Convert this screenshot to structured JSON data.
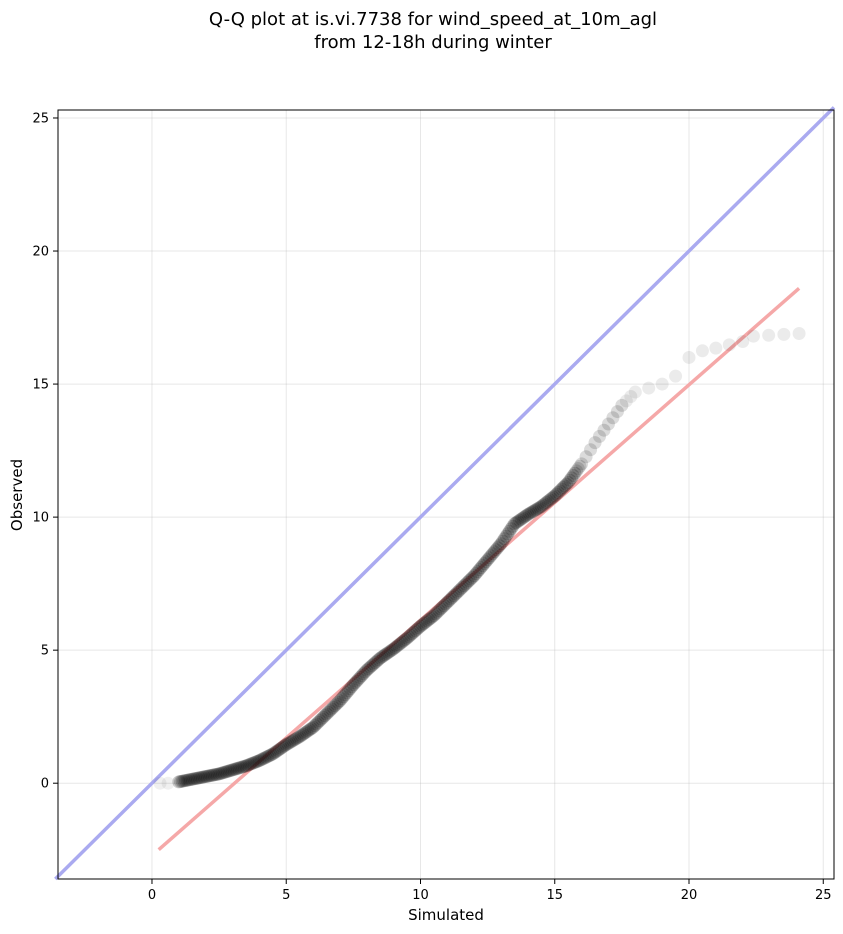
{
  "chart_data": {
    "type": "scatter",
    "title_lines": [
      "Q-Q plot at is.vi.7738 for wind_speed_at_10m_agl",
      "from 12-18h during winter"
    ],
    "xlabel": "Simulated",
    "ylabel": "Observed",
    "xlim": [
      -3.5,
      25.4
    ],
    "ylim": [
      -3.6,
      25.3
    ],
    "xticks": [
      0,
      5,
      10,
      15,
      20,
      25
    ],
    "yticks": [
      0,
      5,
      10,
      15,
      20,
      25
    ],
    "grid": true,
    "reference_line": {
      "from": [
        -3.6,
        -3.6
      ],
      "to": [
        25.4,
        25.4
      ],
      "color": "#aaaaf0"
    },
    "fit_line": {
      "from": [
        0.25,
        -2.5
      ],
      "to": [
        24.1,
        18.6
      ],
      "color": "#f5a8a8"
    },
    "points": {
      "color": "#000000",
      "anchors": [
        [
          0.3,
          0.0
        ],
        [
          0.6,
          0.0
        ],
        [
          1.0,
          0.05
        ],
        [
          1.5,
          0.15
        ],
        [
          2.0,
          0.25
        ],
        [
          2.5,
          0.35
        ],
        [
          3.0,
          0.5
        ],
        [
          3.5,
          0.65
        ],
        [
          4.0,
          0.85
        ],
        [
          4.5,
          1.1
        ],
        [
          5.0,
          1.45
        ],
        [
          5.5,
          1.75
        ],
        [
          6.0,
          2.1
        ],
        [
          6.5,
          2.6
        ],
        [
          7.0,
          3.1
        ],
        [
          7.5,
          3.7
        ],
        [
          8.0,
          4.25
        ],
        [
          8.5,
          4.7
        ],
        [
          9.0,
          5.05
        ],
        [
          9.5,
          5.45
        ],
        [
          10.0,
          5.9
        ],
        [
          10.5,
          6.3
        ],
        [
          11.0,
          6.8
        ],
        [
          11.5,
          7.3
        ],
        [
          12.0,
          7.8
        ],
        [
          12.5,
          8.4
        ],
        [
          13.0,
          9.0
        ],
        [
          13.5,
          9.75
        ],
        [
          14.0,
          10.1
        ],
        [
          14.5,
          10.4
        ],
        [
          15.0,
          10.8
        ],
        [
          15.5,
          11.3
        ],
        [
          16.0,
          12.0
        ],
        [
          16.5,
          12.8
        ],
        [
          17.0,
          13.5
        ],
        [
          17.5,
          14.2
        ],
        [
          18.0,
          14.7
        ],
        [
          18.5,
          14.85
        ],
        [
          19.0,
          15.0
        ],
        [
          19.5,
          15.3
        ],
        [
          20.0,
          16.0
        ],
        [
          20.5,
          16.25
        ],
        [
          21.0,
          16.35
        ],
        [
          22.0,
          16.6
        ],
        [
          22.4,
          16.8
        ],
        [
          24.1,
          16.9
        ]
      ]
    }
  }
}
